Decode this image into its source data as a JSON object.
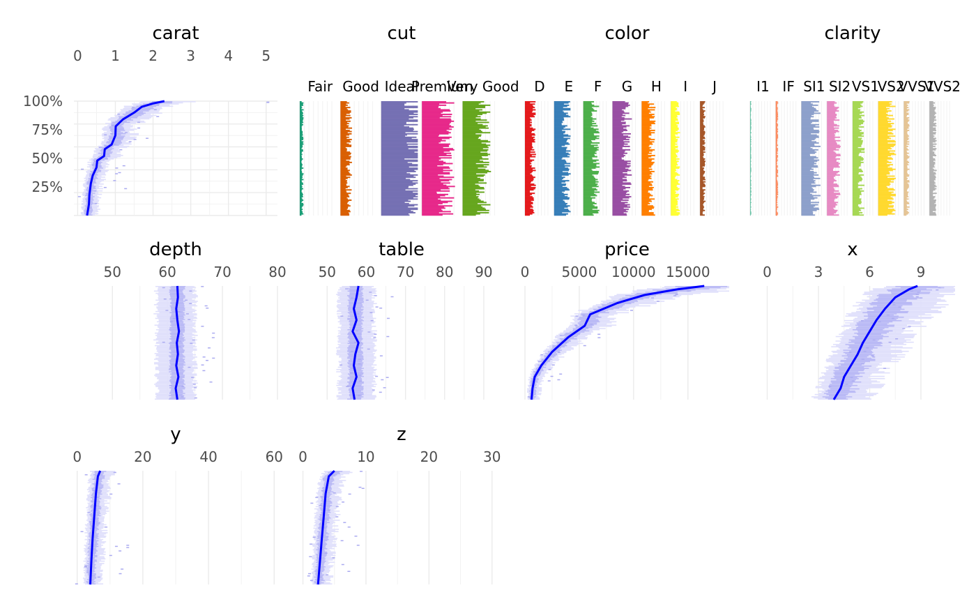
{
  "chart_data": {
    "type": "tableplot",
    "y_axis": {
      "ticks": [
        "100%",
        "75%",
        "50%",
        "25%"
      ],
      "values": [
        100,
        75,
        50,
        25
      ]
    },
    "panels": [
      {
        "id": "carat",
        "title": "carat",
        "kind": "numeric",
        "ticks": [
          "0",
          "1",
          "2",
          "3",
          "4",
          "5"
        ],
        "tick_values": [
          0,
          1,
          2,
          3,
          4,
          5
        ],
        "xlim": [
          -0.1,
          5.3
        ],
        "median": [
          [
            0.25,
            0
          ],
          [
            0.3,
            10
          ],
          [
            0.31,
            18
          ],
          [
            0.35,
            28
          ],
          [
            0.4,
            35
          ],
          [
            0.5,
            42
          ],
          [
            0.52,
            48
          ],
          [
            0.7,
            52
          ],
          [
            0.72,
            58
          ],
          [
            0.9,
            62
          ],
          [
            1.0,
            70
          ],
          [
            1.01,
            78
          ],
          [
            1.2,
            84
          ],
          [
            1.5,
            90
          ],
          [
            1.7,
            95
          ],
          [
            2.0,
            98
          ],
          [
            2.3,
            100
          ]
        ],
        "outliers": [
          [
            5.01,
            99
          ]
        ]
      },
      {
        "id": "cut",
        "title": "cut",
        "kind": "categorical",
        "categories": [
          "Fair",
          "Good",
          "Ideal",
          "Premium",
          "Very Good"
        ],
        "colors": [
          "#1b9e77",
          "#d95f02",
          "#7570b3",
          "#e7298a",
          "#66a61e"
        ],
        "proportions": [
          3,
          9,
          40,
          26,
          22
        ]
      },
      {
        "id": "color",
        "title": "color",
        "kind": "categorical",
        "categories": [
          "D",
          "E",
          "F",
          "G",
          "H",
          "I",
          "J"
        ],
        "colors": [
          "#e41a1c",
          "#377eb8",
          "#4daf4a",
          "#984ea3",
          "#ff7f00",
          "#ffff33",
          "#a65628"
        ],
        "proportions": [
          12,
          18,
          18,
          21,
          15,
          10,
          6
        ]
      },
      {
        "id": "clarity",
        "title": "clarity",
        "kind": "categorical",
        "categories": [
          "I1",
          "IF",
          "SI1",
          "SI2",
          "VS1",
          "VS2",
          "VVS1",
          "VVS2"
        ],
        "colors": [
          "#66c2a5",
          "#fc8d62",
          "#8da0cb",
          "#e78ac3",
          "#a6d854",
          "#ffd92f",
          "#e5c494",
          "#b3b3b3"
        ],
        "proportions": [
          1.5,
          3,
          24,
          17,
          15,
          22,
          7,
          9
        ]
      },
      {
        "id": "depth",
        "title": "depth",
        "kind": "numeric",
        "ticks": [
          "50",
          "60",
          "70",
          "80"
        ],
        "tick_values": [
          50,
          60,
          70,
          80
        ],
        "xlim": [
          43,
          80
        ],
        "median": [
          [
            61.8,
            0
          ],
          [
            61.5,
            10
          ],
          [
            62.0,
            20
          ],
          [
            61.6,
            30
          ],
          [
            61.9,
            40
          ],
          [
            61.7,
            50
          ],
          [
            62.1,
            60
          ],
          [
            61.8,
            70
          ],
          [
            61.6,
            80
          ],
          [
            61.9,
            90
          ],
          [
            61.8,
            100
          ]
        ],
        "band_inner": [
          60.5,
          63.0
        ],
        "band_outer": [
          58.0,
          65.0
        ]
      },
      {
        "id": "table",
        "title": "table",
        "kind": "numeric",
        "ticks": [
          "50",
          "60",
          "70",
          "80",
          "90"
        ],
        "tick_values": [
          50,
          60,
          70,
          80,
          90
        ],
        "xlim": [
          43,
          95
        ],
        "median": [
          [
            57.0,
            0
          ],
          [
            56.5,
            10
          ],
          [
            57.5,
            20
          ],
          [
            56.8,
            30
          ],
          [
            57.2,
            40
          ],
          [
            58.0,
            50
          ],
          [
            56.5,
            60
          ],
          [
            57.5,
            70
          ],
          [
            56.8,
            80
          ],
          [
            57.5,
            90
          ],
          [
            58.0,
            100
          ]
        ],
        "band_inner": [
          55.5,
          59.0
        ],
        "band_outer": [
          53.0,
          62.0
        ]
      },
      {
        "id": "price",
        "title": "price",
        "kind": "numeric",
        "ticks": [
          "0",
          "5000",
          "10000",
          "15000"
        ],
        "tick_values": [
          0,
          5000,
          10000,
          15000
        ],
        "xlim": [
          0,
          18800
        ],
        "median": [
          [
            600,
            0
          ],
          [
            700,
            10
          ],
          [
            900,
            20
          ],
          [
            1500,
            30
          ],
          [
            2500,
            42
          ],
          [
            4000,
            55
          ],
          [
            5500,
            65
          ],
          [
            6000,
            75
          ],
          [
            8500,
            85
          ],
          [
            11000,
            92
          ],
          [
            14000,
            97
          ],
          [
            16500,
            100
          ]
        ]
      },
      {
        "id": "x",
        "title": "x",
        "kind": "numeric",
        "ticks": [
          "0",
          "3",
          "6",
          "9"
        ],
        "tick_values": [
          0,
          3,
          6,
          9
        ],
        "xlim": [
          -1,
          11
        ],
        "median": [
          [
            3.9,
            0
          ],
          [
            4.3,
            10
          ],
          [
            4.5,
            20
          ],
          [
            4.9,
            30
          ],
          [
            5.3,
            40
          ],
          [
            5.6,
            50
          ],
          [
            6.0,
            60
          ],
          [
            6.4,
            70
          ],
          [
            6.9,
            80
          ],
          [
            7.5,
            90
          ],
          [
            8.3,
            97
          ],
          [
            8.8,
            100
          ]
        ]
      },
      {
        "id": "y",
        "title": "y",
        "kind": "numeric",
        "ticks": [
          "0",
          "20",
          "40",
          "60"
        ],
        "tick_values": [
          0,
          20,
          40,
          60
        ],
        "xlim": [
          -1,
          61
        ],
        "median": [
          [
            4.0,
            0
          ],
          [
            4.3,
            20
          ],
          [
            4.7,
            40
          ],
          [
            5.2,
            60
          ],
          [
            5.7,
            80
          ],
          [
            6.3,
            95
          ],
          [
            7.0,
            100
          ]
        ]
      },
      {
        "id": "z",
        "title": "z",
        "kind": "numeric",
        "ticks": [
          "0",
          "10",
          "20",
          "30"
        ],
        "tick_values": [
          0,
          10,
          20,
          30
        ],
        "xlim": [
          -0.5,
          31.8
        ],
        "median": [
          [
            2.4,
            0
          ],
          [
            2.7,
            20
          ],
          [
            3.0,
            40
          ],
          [
            3.3,
            60
          ],
          [
            3.6,
            80
          ],
          [
            4.1,
            95
          ],
          [
            5.0,
            100
          ]
        ]
      }
    ]
  }
}
